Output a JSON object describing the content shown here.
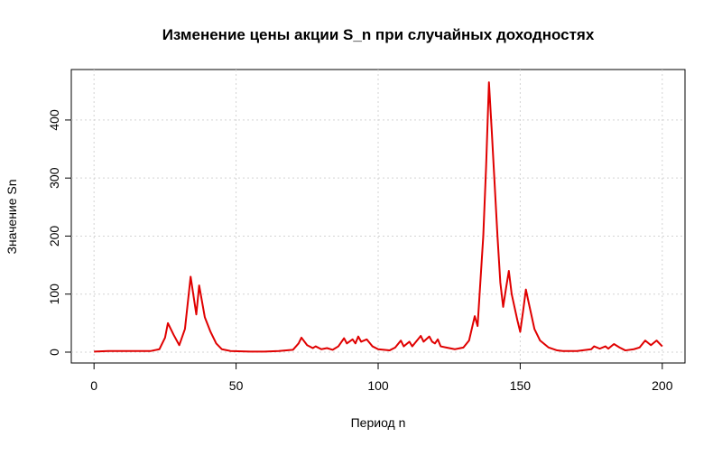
{
  "chart_data": {
    "type": "line",
    "title": "Изменение цены акции S_n при случайных доходностях",
    "x_label": "Период n",
    "y_label": "Значение Sn",
    "x": [
      0,
      5,
      10,
      15,
      20,
      23,
      25,
      26,
      28,
      30,
      32,
      34,
      36,
      37,
      39,
      41,
      43,
      45,
      48,
      55,
      60,
      65,
      70,
      72,
      73,
      75,
      77,
      78,
      80,
      82,
      84,
      86,
      88,
      89,
      91,
      92,
      93,
      94,
      96,
      98,
      100,
      104,
      106,
      108,
      109,
      111,
      112,
      114,
      115,
      116,
      118,
      119,
      120,
      121,
      122,
      124,
      127,
      130,
      132,
      134,
      135,
      137,
      138,
      139,
      140,
      142,
      143,
      144,
      145,
      146,
      147,
      149,
      150,
      151,
      152,
      153,
      155,
      157,
      160,
      163,
      165,
      170,
      175,
      176,
      178,
      180,
      181,
      183,
      185,
      187,
      190,
      192,
      194,
      196,
      198,
      200
    ],
    "series": [
      {
        "name": "Sn",
        "color": "#e00000",
        "values": [
          1,
          2,
          2,
          2,
          2,
          5,
          25,
          50,
          30,
          12,
          40,
          130,
          65,
          115,
          60,
          35,
          15,
          5,
          2,
          1,
          1,
          2,
          4,
          15,
          25,
          12,
          7,
          10,
          5,
          7,
          4,
          10,
          24,
          15,
          22,
          15,
          27,
          18,
          22,
          10,
          5,
          3,
          8,
          20,
          10,
          18,
          10,
          22,
          28,
          18,
          27,
          18,
          15,
          22,
          10,
          8,
          5,
          8,
          20,
          62,
          45,
          200,
          320,
          465,
          380,
          200,
          120,
          78,
          110,
          140,
          100,
          55,
          35,
          70,
          108,
          85,
          40,
          20,
          8,
          3,
          2,
          2,
          5,
          10,
          6,
          10,
          6,
          14,
          8,
          3,
          5,
          8,
          20,
          12,
          20,
          10
        ]
      }
    ],
    "xlim": [
      -8,
      208
    ],
    "ylim": [
      -18.7,
      487
    ],
    "xticks": [
      0,
      50,
      100,
      150,
      200
    ],
    "yticks": [
      0,
      100,
      200,
      300,
      400
    ],
    "grid": true
  }
}
